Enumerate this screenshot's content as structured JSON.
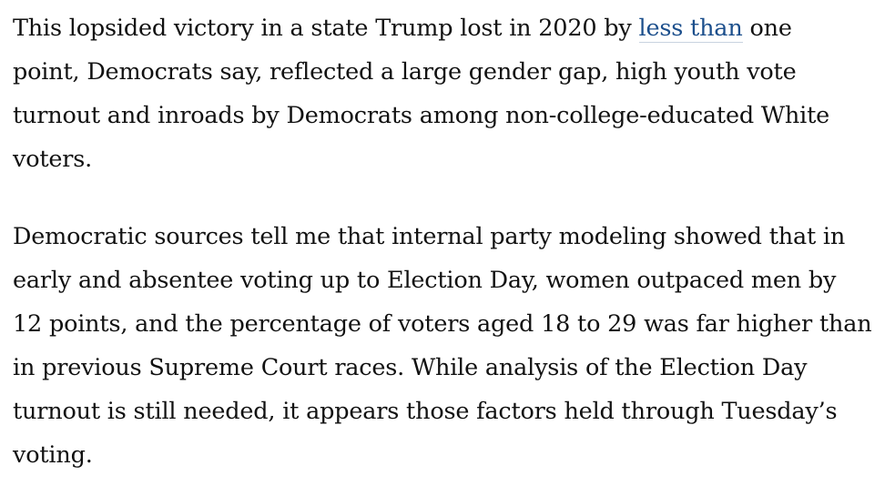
{
  "article": {
    "paragraphs": [
      {
        "lines": [
          {
            "before": "This lopsided victory in a state Trump lost in 2020 by ",
            "link": "less than",
            "after": " one"
          },
          {
            "text": "point, Democrats say, reflected a large gender gap, high youth vote"
          },
          {
            "text": "turnout and inroads by Democrats among non-college-educated White"
          },
          {
            "text": "voters."
          }
        ]
      },
      {
        "lines": [
          {
            "text": "Democratic sources tell me that internal party modeling showed that in"
          },
          {
            "text": "early and absentee voting up to Election Day, women outpaced men by"
          },
          {
            "text": "12 points, and the percentage of voters aged 18 to 29 was far higher than"
          },
          {
            "text": "in previous Supreme Court races. While analysis of the Election Day"
          },
          {
            "text": "turnout is still needed, it appears those factors held through Tuesday’s"
          },
          {
            "text": "voting."
          }
        ]
      }
    ]
  },
  "colors": {
    "text": "#111111",
    "link": "#1c4f8c",
    "background": "#ffffff"
  }
}
